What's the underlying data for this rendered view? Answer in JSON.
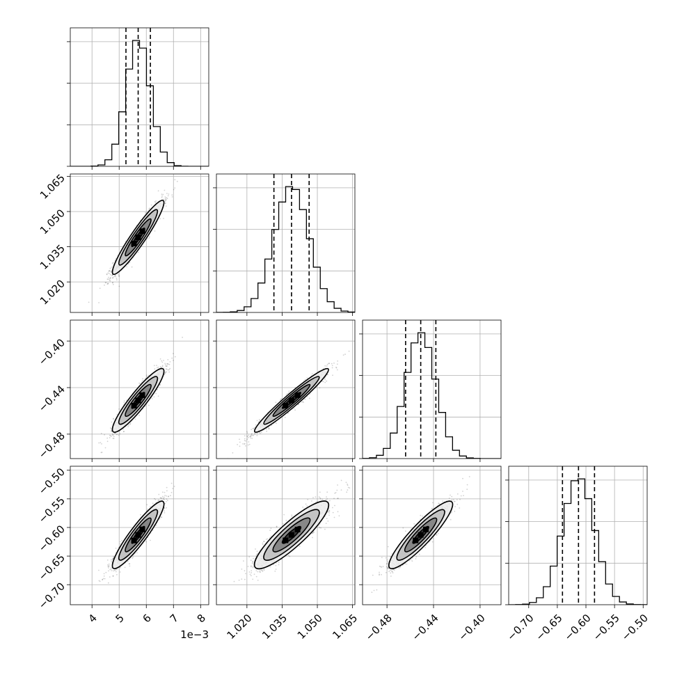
{
  "chart_data": {
    "type": "corner",
    "parameters": [
      {
        "mean": 0.0057,
        "sd": 0.00045,
        "range": [
          0.0032,
          0.0083
        ],
        "ticks": [
          0.004,
          0.005,
          0.006,
          0.007,
          0.008
        ],
        "tick_labels": [
          "4",
          "5",
          "6",
          "7",
          "8"
        ],
        "offset_text": "1e−3",
        "quantiles": [
          0.00525,
          0.0057,
          0.00615
        ]
      },
      {
        "mean": 1.039,
        "sd": 0.0075,
        "range": [
          1.007,
          1.066
        ],
        "ticks": [
          1.02,
          1.035,
          1.05,
          1.065
        ],
        "tick_labels": [
          "1.020",
          "1.035",
          "1.050",
          "1.065"
        ],
        "offset_text": "",
        "quantiles": [
          1.0315,
          1.039,
          1.0465
        ]
      },
      {
        "mean": -0.451,
        "sd": 0.013,
        "range": [
          -0.501,
          -0.382
        ],
        "ticks": [
          -0.48,
          -0.44,
          -0.4
        ],
        "tick_labels": [
          "−0.48",
          "−0.44",
          "−0.40"
        ],
        "offset_text": "",
        "quantiles": [
          -0.464,
          -0.451,
          -0.438
        ]
      },
      {
        "mean": -0.613,
        "sd": 0.028,
        "range": [
          -0.735,
          -0.493
        ],
        "ticks": [
          -0.7,
          -0.65,
          -0.6,
          -0.55,
          -0.5
        ],
        "tick_labels": [
          "−0.70",
          "−0.65",
          "−0.60",
          "−0.55",
          "−0.50"
        ],
        "offset_text": "",
        "quantiles": [
          -0.641,
          -0.613,
          -0.585
        ]
      }
    ],
    "correlations": [
      [
        1.0,
        0.95,
        0.93,
        0.93
      ],
      [
        0.95,
        1.0,
        0.97,
        0.9
      ],
      [
        0.93,
        0.97,
        1.0,
        0.92
      ],
      [
        0.93,
        0.9,
        0.92,
        1.0
      ]
    ],
    "bins": 20,
    "contour_levels_sigma": [
      0.5,
      1.0,
      1.5,
      2.0
    ],
    "grid": true
  }
}
